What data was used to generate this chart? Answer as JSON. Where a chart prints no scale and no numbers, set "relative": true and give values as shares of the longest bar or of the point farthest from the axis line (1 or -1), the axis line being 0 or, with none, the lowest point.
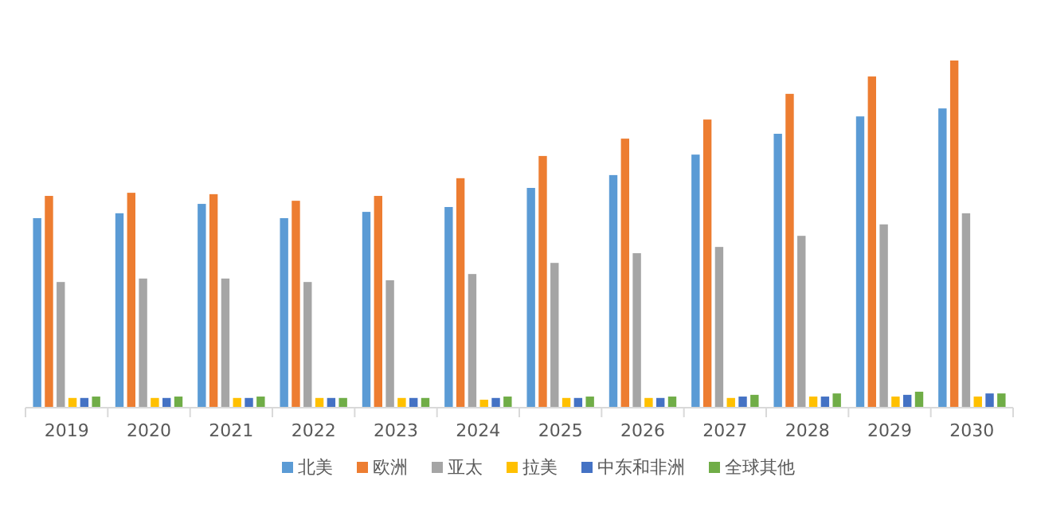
{
  "chart_data": {
    "type": "bar",
    "relative": true,
    "legend": "bottom",
    "categories": [
      "2019",
      "2020",
      "2021",
      "2022",
      "2023",
      "2024",
      "2025",
      "2026",
      "2027",
      "2028",
      "2029",
      "2030"
    ],
    "series": [
      {
        "name": "北美",
        "color": "#5b9bd5",
        "values": [
          0.546,
          0.56,
          0.587,
          0.546,
          0.564,
          0.578,
          0.633,
          0.67,
          0.729,
          0.789,
          0.839,
          0.862
        ]
      },
      {
        "name": "欧洲",
        "color": "#ed7d31",
        "values": [
          0.61,
          0.619,
          0.615,
          0.596,
          0.61,
          0.661,
          0.725,
          0.775,
          0.83,
          0.904,
          0.954,
          1
        ]
      },
      {
        "name": "亚太",
        "color": "#a5a5a5",
        "values": [
          0.362,
          0.372,
          0.372,
          0.362,
          0.367,
          0.385,
          0.417,
          0.445,
          0.463,
          0.495,
          0.528,
          0.56
        ]
      },
      {
        "name": "拉美",
        "color": "#ffc000",
        "values": [
          0.028,
          0.028,
          0.028,
          0.028,
          0.028,
          0.023,
          0.028,
          0.028,
          0.028,
          0.032,
          0.032,
          0.032
        ]
      },
      {
        "name": "中东和非洲",
        "color": "#4472c4",
        "values": [
          0.028,
          0.028,
          0.028,
          0.028,
          0.028,
          0.028,
          0.028,
          0.028,
          0.032,
          0.032,
          0.037,
          0.041
        ]
      },
      {
        "name": "全球其他",
        "color": "#70ad47",
        "values": [
          0.032,
          0.032,
          0.032,
          0.028,
          0.028,
          0.032,
          0.032,
          0.032,
          0.037,
          0.041,
          0.046,
          0.041
        ]
      }
    ]
  }
}
